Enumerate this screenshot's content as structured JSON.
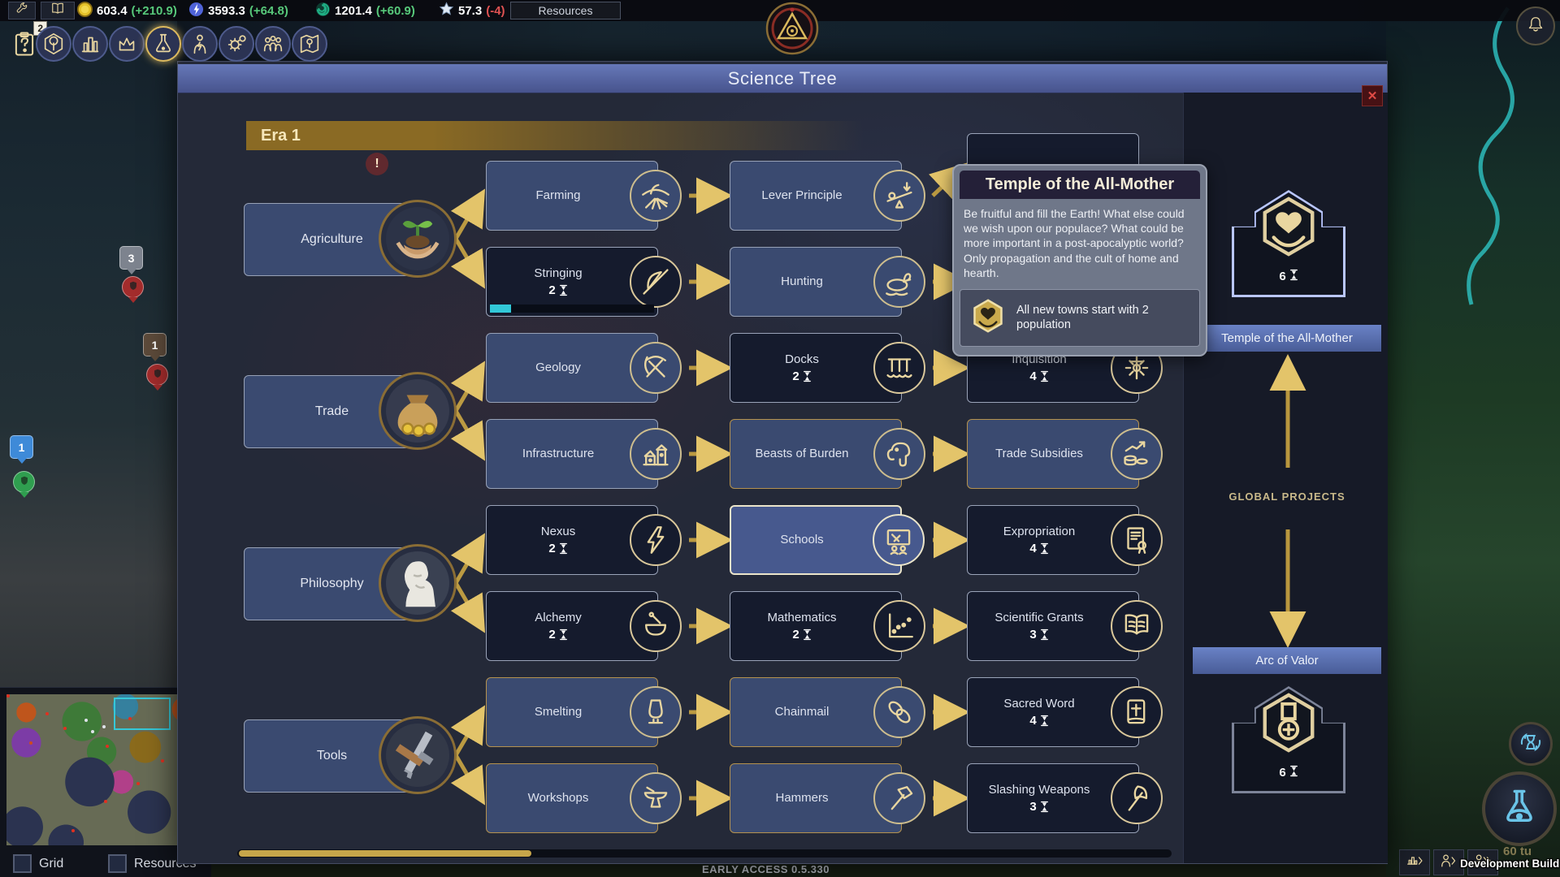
{
  "top_bar": {
    "resources": [
      {
        "id": "gold",
        "icon": "coin-icon",
        "value": "603.4",
        "delta": "(+210.9)",
        "trend": "up"
      },
      {
        "id": "energy",
        "icon": "energy-orb-icon",
        "value": "3593.3",
        "delta": "(+64.8)",
        "trend": "up"
      },
      {
        "id": "gaia",
        "icon": "spiral-icon",
        "value": "1201.4",
        "delta": "(+60.9)",
        "trend": "up"
      },
      {
        "id": "fame",
        "icon": "star-icon",
        "value": "57.3",
        "delta": "(-4)",
        "trend": "down"
      }
    ],
    "resources_button_label": "Resources"
  },
  "toolbar": {
    "journal_badge": "2",
    "items": [
      {
        "id": "journal",
        "icon": "clipboard-question-icon"
      },
      {
        "id": "nature",
        "icon": "hex-tree-icon"
      },
      {
        "id": "city",
        "icon": "city-icon"
      },
      {
        "id": "rulers",
        "icon": "crown-icon"
      },
      {
        "id": "science",
        "icon": "flask-icon",
        "selected": true
      },
      {
        "id": "energy",
        "icon": "energy-person-icon"
      },
      {
        "id": "automation",
        "icon": "gear-icon"
      },
      {
        "id": "population",
        "icon": "people-icon"
      },
      {
        "id": "world",
        "icon": "map-pin-icon"
      }
    ]
  },
  "science_tree": {
    "title": "Science Tree",
    "era_label": "Era 1",
    "close_glyph": "✕",
    "categories": [
      {
        "id": "agriculture",
        "label": "Agriculture"
      },
      {
        "id": "trade",
        "label": "Trade"
      },
      {
        "id": "philosophy",
        "label": "Philosophy"
      },
      {
        "id": "tools",
        "label": "Tools"
      }
    ],
    "techs": [
      {
        "id": "farming",
        "label": "Farming",
        "state": "researched"
      },
      {
        "id": "lever-principle",
        "label": "Lever Principle",
        "state": "researched"
      },
      {
        "id": "hidden-a",
        "label": "",
        "state": "occluded"
      },
      {
        "id": "stringing",
        "label": "Stringing",
        "turns": "2",
        "state": "researching",
        "progress": 0.13
      },
      {
        "id": "hunting",
        "label": "Hunting",
        "state": "researched"
      },
      {
        "id": "hidden-b",
        "label": "",
        "state": "occluded"
      },
      {
        "id": "geology",
        "label": "Geology",
        "state": "researched"
      },
      {
        "id": "docks",
        "label": "Docks",
        "turns": "2",
        "state": "locked"
      },
      {
        "id": "inquisition",
        "label": "Inquisition",
        "turns": "4",
        "state": "locked"
      },
      {
        "id": "infrastructure",
        "label": "Infrastructure",
        "state": "researched"
      },
      {
        "id": "beasts-of-burden",
        "label": "Beasts of Burden",
        "state": "available"
      },
      {
        "id": "trade-subsidies",
        "label": "Trade Subsidies",
        "state": "available"
      },
      {
        "id": "nexus",
        "label": "Nexus",
        "turns": "2",
        "state": "locked"
      },
      {
        "id": "schools",
        "label": "Schools",
        "state": "highlighted"
      },
      {
        "id": "expropriation",
        "label": "Expropriation",
        "turns": "4",
        "state": "locked"
      },
      {
        "id": "alchemy",
        "label": "Alchemy",
        "turns": "2",
        "state": "locked"
      },
      {
        "id": "mathematics",
        "label": "Mathematics",
        "turns": "2",
        "state": "locked"
      },
      {
        "id": "scientific-grants",
        "label": "Scientific Grants",
        "turns": "3",
        "state": "locked"
      },
      {
        "id": "smelting",
        "label": "Smelting",
        "state": "available"
      },
      {
        "id": "chainmail",
        "label": "Chainmail",
        "state": "available"
      },
      {
        "id": "sacred-word",
        "label": "Sacred Word",
        "turns": "4",
        "state": "locked"
      },
      {
        "id": "workshops",
        "label": "Workshops",
        "state": "available"
      },
      {
        "id": "hammers",
        "label": "Hammers",
        "state": "available"
      },
      {
        "id": "slashing-weapons",
        "label": "Slashing Weapons",
        "turns": "3",
        "state": "locked"
      }
    ],
    "edges": [
      [
        "agriculture",
        "farming"
      ],
      [
        "agriculture",
        "stringing"
      ],
      [
        "farming",
        "lever-principle"
      ],
      [
        "stringing",
        "hunting"
      ],
      [
        "lever-principle",
        "hidden-a"
      ],
      [
        "hunting",
        "hidden-b"
      ],
      [
        "trade",
        "geology"
      ],
      [
        "trade",
        "infrastructure"
      ],
      [
        "geology",
        "docks"
      ],
      [
        "docks",
        "inquisition"
      ],
      [
        "infrastructure",
        "beasts-of-burden"
      ],
      [
        "beasts-of-burden",
        "trade-subsidies"
      ],
      [
        "philosophy",
        "nexus"
      ],
      [
        "philosophy",
        "alchemy"
      ],
      [
        "nexus",
        "schools"
      ],
      [
        "schools",
        "expropriation"
      ],
      [
        "alchemy",
        "mathematics"
      ],
      [
        "mathematics",
        "scientific-grants"
      ],
      [
        "tools",
        "smelting"
      ],
      [
        "tools",
        "workshops"
      ],
      [
        "smelting",
        "chainmail"
      ],
      [
        "chainmail",
        "sacred-word"
      ],
      [
        "workshops",
        "hammers"
      ],
      [
        "hammers",
        "slashing-weapons"
      ]
    ],
    "tooltip": {
      "title": "Temple of the All-Mother",
      "body": "Be fruitful and fill the Earth! What else could we wish upon our populace? What could be more important in a post-apocalyptic world? Only propagation and the cult of home and hearth.",
      "effect": "All new towns start with 2 population"
    },
    "global_projects": {
      "section_label": "GLOBAL PROJECTS",
      "items": [
        {
          "id": "temple-of-the-all-mother",
          "label": "Temple of the All-Mother",
          "turns": "6",
          "highlighted": true
        },
        {
          "id": "arc-of-valor",
          "label": "Arc of Valor",
          "turns": "6",
          "highlighted": false
        }
      ]
    }
  },
  "map": {
    "pins": [
      {
        "id": "stack-gray",
        "value": "3",
        "kind": "count",
        "color": "#7d838e"
      },
      {
        "id": "stack-gray-flag",
        "value": "",
        "kind": "shield",
        "color": "#a32c2c",
        "shield": "#3a2424"
      },
      {
        "id": "stack-brown",
        "value": "1",
        "kind": "count",
        "color": "#5c4a3a"
      },
      {
        "id": "stack-brown-flag",
        "value": "",
        "kind": "shield",
        "color": "#a32c2c",
        "shield": "#3a2424"
      },
      {
        "id": "stack-blue",
        "value": "1",
        "kind": "count",
        "color": "#3e8ad8"
      },
      {
        "id": "stack-blue-flag",
        "value": "",
        "kind": "shield",
        "color": "#2f9e4f",
        "shield": "#1e4a2a"
      },
      {
        "id": "alert",
        "value": "!",
        "kind": "alert"
      }
    ],
    "minimap": {
      "grid_label": "Grid",
      "resources_label": "Resources"
    }
  },
  "footer": {
    "dev_build": "Development Build",
    "turn_counter": "60 tu",
    "version": "EARLY ACCESS 0.5.330"
  }
}
